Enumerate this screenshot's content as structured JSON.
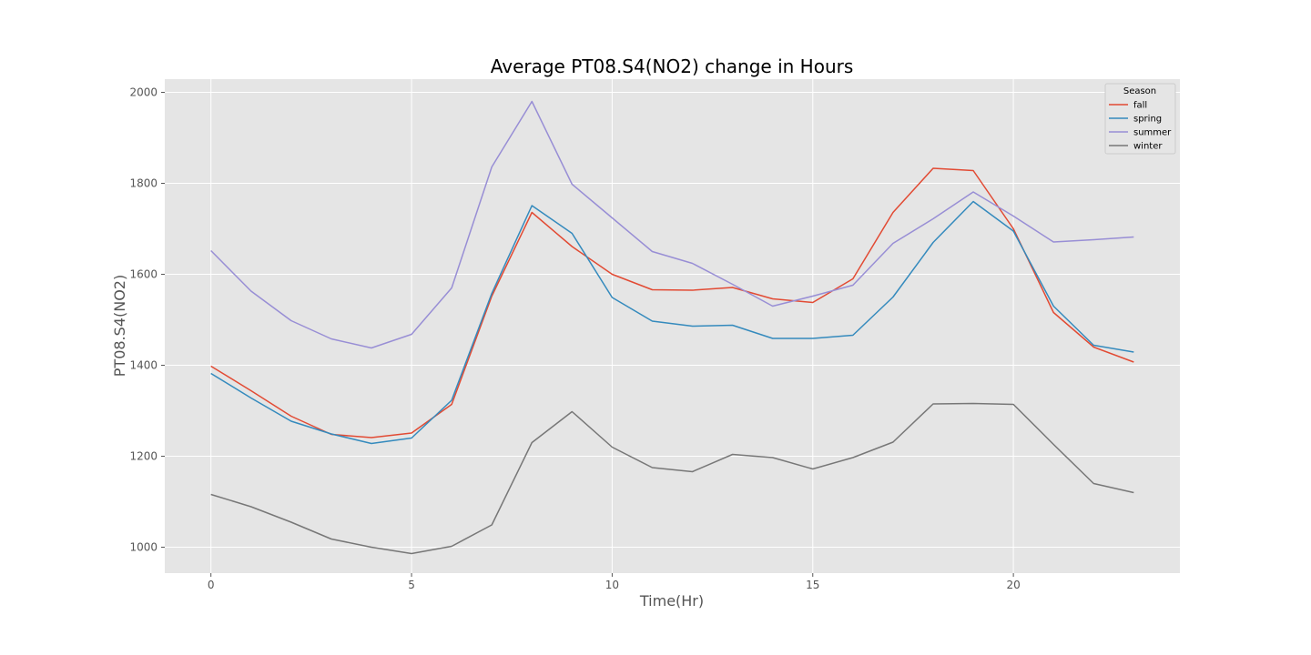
{
  "chart_data": {
    "type": "line",
    "title": "Average PT08.S4(NO2) change in Hours",
    "xlabel": "Time(Hr)",
    "ylabel": "PT08.S4(NO2)",
    "x": [
      0,
      1,
      2,
      3,
      4,
      5,
      6,
      7,
      8,
      9,
      10,
      11,
      12,
      13,
      14,
      15,
      16,
      17,
      18,
      19,
      20,
      21,
      22,
      23
    ],
    "xlim": [
      -1.15,
      24.15
    ],
    "ylim": [
      943,
      2029
    ],
    "xticks": [
      0,
      5,
      10,
      15,
      20
    ],
    "yticks": [
      1000,
      1200,
      1400,
      1600,
      1800,
      2000
    ],
    "grid": true,
    "legend": {
      "title": "Season",
      "placement": "top-right"
    },
    "series": [
      {
        "name": "fall",
        "color": "#e24a33",
        "values": [
          1398,
          1344,
          1288,
          1248,
          1241,
          1251,
          1314,
          1552,
          1736,
          1661,
          1600,
          1566,
          1565,
          1571,
          1546,
          1538,
          1590,
          1736,
          1833,
          1828,
          1700,
          1516,
          1440,
          1407
        ]
      },
      {
        "name": "spring",
        "color": "#348abd",
        "values": [
          1382,
          1328,
          1277,
          1249,
          1228,
          1240,
          1323,
          1558,
          1751,
          1690,
          1549,
          1497,
          1486,
          1488,
          1459,
          1459,
          1466,
          1550,
          1670,
          1760,
          1695,
          1530,
          1444,
          1429
        ]
      },
      {
        "name": "summer",
        "color": "#988ed5",
        "values": [
          1652,
          1563,
          1498,
          1458,
          1438,
          1468,
          1570,
          1836,
          1980,
          1798,
          1724,
          1650,
          1624,
          1578,
          1530,
          1552,
          1576,
          1668,
          1722,
          1781,
          1728,
          1671,
          1676,
          1682
        ]
      },
      {
        "name": "winter",
        "color": "#777777",
        "values": [
          1116,
          1089,
          1055,
          1018,
          1000,
          986,
          1002,
          1049,
          1230,
          1298,
          1220,
          1175,
          1166,
          1204,
          1197,
          1172,
          1197,
          1231,
          1315,
          1316,
          1314,
          1226,
          1140,
          1120
        ]
      }
    ]
  }
}
